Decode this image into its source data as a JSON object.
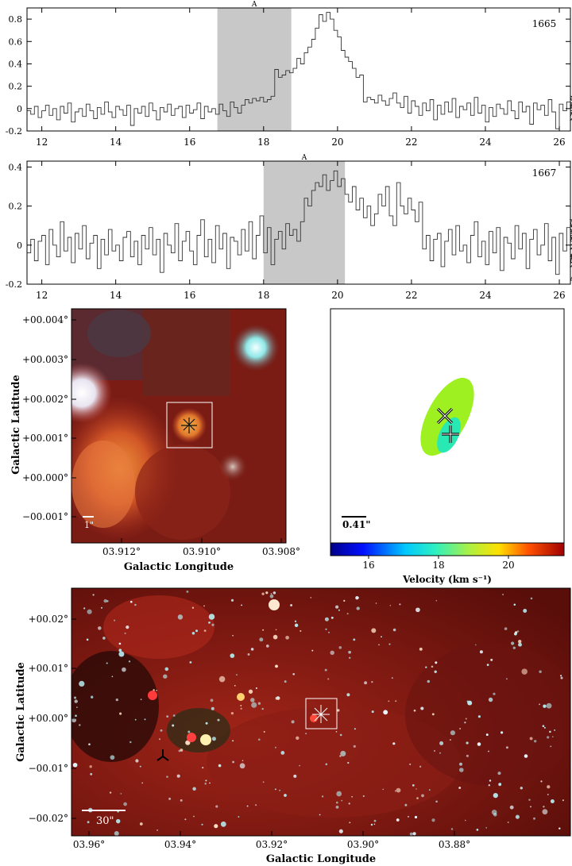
{
  "chart_data": [
    {
      "type": "line",
      "label": "1665",
      "region_label": "A",
      "highlight": [
        16.75,
        18.75
      ],
      "xlim": [
        11.6,
        26.3
      ],
      "ylim": [
        -0.2,
        0.9
      ],
      "xticks": [
        "12",
        "14",
        "16",
        "18",
        "20",
        "22",
        "24",
        "26"
      ],
      "yticks": [
        "-0.2",
        "0",
        "0.2",
        "0.4",
        "0.6",
        "0.8"
      ],
      "x_start": 11.6,
      "x_step": 0.1,
      "y": [
        -0.02,
        -0.05,
        0.02,
        -0.08,
        -0.02,
        0.03,
        -0.06,
        0.0,
        -0.1,
        0.02,
        -0.04,
        0.05,
        -0.12,
        -0.03,
        0.0,
        -0.07,
        0.04,
        -0.02,
        -0.09,
        0.01,
        -0.05,
        0.06,
        -0.03,
        -0.08,
        0.02,
        -0.01,
        -0.06,
        0.03,
        -0.15,
        0.0,
        -0.04,
        0.02,
        -0.07,
        0.05,
        -0.02,
        -0.1,
        0.01,
        -0.03,
        0.04,
        -0.06,
        0.0,
        0.02,
        -0.08,
        0.03,
        -0.04,
        -0.01,
        0.05,
        -0.09,
        0.02,
        -0.03,
        0.0,
        -0.05,
        0.04,
        -0.02,
        -0.07,
        0.06,
        0.01,
        -0.04,
        0.03,
        0.08,
        0.05,
        0.09,
        0.07,
        0.1,
        0.06,
        0.08,
        0.11,
        0.35,
        0.28,
        0.3,
        0.34,
        0.32,
        0.36,
        0.45,
        0.4,
        0.5,
        0.55,
        0.62,
        0.72,
        0.84,
        0.78,
        0.86,
        0.8,
        0.7,
        0.64,
        0.52,
        0.46,
        0.42,
        0.36,
        0.28,
        0.3,
        0.06,
        0.1,
        0.08,
        0.05,
        0.12,
        0.07,
        0.03,
        0.09,
        0.14,
        0.05,
        0.01,
        0.11,
        -0.04,
        0.07,
        0.02,
        -0.06,
        0.05,
        -0.02,
        0.08,
        -0.1,
        0.03,
        -0.05,
        0.06,
        -0.03,
        0.09,
        -0.08,
        0.02,
        -0.01,
        0.05,
        -0.06,
        0.1,
        -0.04,
        0.03,
        -0.12,
        0.01,
        -0.07,
        0.04,
        0.0,
        -0.05,
        0.07,
        -0.02,
        -0.09,
        0.06,
        -0.03,
        0.02,
        -0.14,
        0.05,
        -0.01,
        0.03,
        -0.06,
        0.08,
        -0.03,
        -0.18,
        0.04,
        -0.02,
        0.06,
        -0.07,
        0.01,
        0.09,
        -0.04,
        0.03,
        -0.1,
        0.05,
        0.11,
        -0.02,
        0.04,
        0.0
      ]
    },
    {
      "type": "line",
      "label": "1667",
      "region_label": "A",
      "highlight": [
        18.0,
        20.2
      ],
      "xlim": [
        11.6,
        26.3
      ],
      "ylim": [
        -0.2,
        0.43
      ],
      "xticks": [
        "12",
        "14",
        "16",
        "18",
        "20",
        "22",
        "24",
        "26"
      ],
      "yticks": [
        "-0.2",
        "0",
        "0.2",
        "0.4"
      ],
      "x_start": 11.6,
      "x_step": 0.1,
      "y": [
        -0.04,
        0.03,
        -0.08,
        0.02,
        0.05,
        -0.1,
        0.08,
        0.0,
        -0.06,
        0.12,
        -0.03,
        0.04,
        -0.09,
        0.06,
        -0.02,
        0.1,
        -0.07,
        0.01,
        0.05,
        -0.12,
        0.03,
        -0.05,
        0.08,
        -0.03,
        0.0,
        -0.08,
        0.04,
        0.07,
        -0.06,
        0.02,
        -0.1,
        0.05,
        -0.02,
        0.09,
        -0.05,
        0.03,
        -0.14,
        0.06,
        0.0,
        -0.04,
        0.11,
        -0.08,
        0.02,
        0.07,
        -0.03,
        -0.1,
        0.05,
        0.13,
        -0.06,
        0.03,
        -0.09,
        0.1,
        -0.02,
        0.06,
        -0.12,
        0.04,
        0.02,
        -0.05,
        0.08,
        -0.03,
        0.12,
        -0.07,
        0.05,
        0.15,
        -0.04,
        0.09,
        -0.1,
        0.03,
        0.07,
        -0.02,
        0.11,
        0.05,
        0.08,
        0.02,
        0.12,
        0.24,
        0.2,
        0.28,
        0.32,
        0.3,
        0.36,
        0.28,
        0.33,
        0.38,
        0.3,
        0.34,
        0.26,
        0.22,
        0.3,
        0.18,
        0.24,
        0.14,
        0.2,
        0.1,
        0.16,
        0.26,
        0.2,
        0.3,
        0.15,
        0.1,
        0.32,
        0.2,
        0.16,
        0.24,
        0.18,
        0.12,
        0.22,
        -0.02,
        0.05,
        -0.08,
        0.03,
        0.06,
        -0.11,
        0.02,
        0.08,
        -0.05,
        0.1,
        -0.03,
        0.0,
        -0.09,
        0.05,
        0.12,
        -0.06,
        0.02,
        -0.1,
        0.07,
        -0.04,
        0.09,
        -0.13,
        0.04,
        0.01,
        -0.07,
        0.1,
        -0.02,
        0.06,
        -0.12,
        0.03,
        0.08,
        -0.05,
        0.0,
        0.11,
        -0.08,
        0.04,
        -0.15,
        0.06,
        -0.03,
        0.09,
        -0.1,
        0.02,
        0.12,
        -0.06,
        0.05,
        -0.18,
        0.04,
        -0.02,
        0.1,
        -0.07,
        0.03,
        0.08,
        -0.11,
        0.06,
        0.0,
        0.13,
        -0.05,
        0.07,
        -0.09,
        0.04
      ]
    }
  ],
  "image_panels": {
    "left": {
      "xlabel": "Galactic Longitude",
      "ylabel": "Galactic Latitude",
      "xticks": [
        "03.912°",
        "03.910°",
        "03.908°"
      ],
      "yticks": [
        "+00.004°",
        "+00.003°",
        "+00.002°",
        "+00.001°",
        "+00.000°",
        "−00.001°"
      ],
      "scalebar": "1\""
    },
    "right": {
      "scalebar": "0.41\"",
      "colorbar_label": "Velocity (km s⁻¹)",
      "colorbar_ticks": [
        "16",
        "18",
        "20"
      ]
    },
    "bottom": {
      "xlabel": "Galactic Longitude",
      "ylabel": "Galactic Latitude",
      "xticks": [
        "03.96°",
        "03.94°",
        "03.92°",
        "03.90°",
        "03.88°"
      ],
      "yticks": [
        "+00.02°",
        "+00.01°",
        "+00.00°",
        "−00.01°",
        "−00.02°"
      ],
      "scalebar": "30\""
    }
  },
  "colors": {
    "highlight": "#c8c8c8",
    "nebula": "#8a1a14",
    "green_ellipse": "#9ef020",
    "cyan_ellipse": "#28e8b4"
  }
}
